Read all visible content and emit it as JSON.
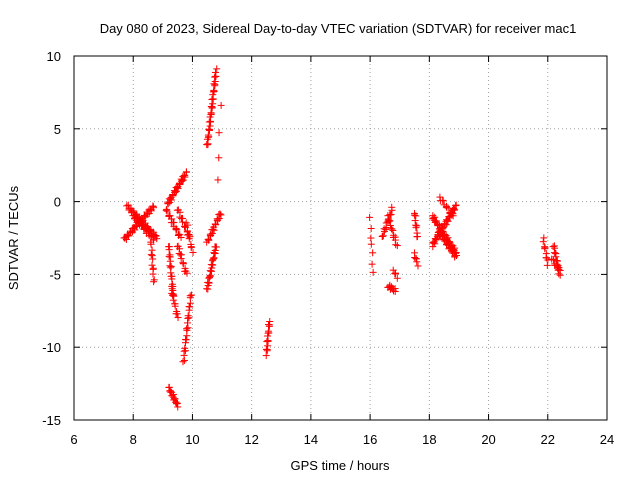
{
  "chart_data": {
    "type": "scatter",
    "title": "Day 080 of 2023, Sidereal Day-to-day VTEC variation (SDTVAR) for receiver mac1",
    "xlabel": "GPS time / hours",
    "ylabel": "SDTVAR / TECUs",
    "xlim": [
      6,
      24
    ],
    "ylim": [
      -15,
      10
    ],
    "xticks": [
      "6",
      "8",
      "10",
      "12",
      "14",
      "16",
      "18",
      "20",
      "22",
      "24"
    ],
    "yticks": [
      "-15",
      "-10",
      "-5",
      "0",
      "5",
      "10"
    ],
    "grid": true,
    "marker": "+",
    "color": "#ff0000",
    "segments": [
      {
        "x0": 7.7,
        "x1": 8.7,
        "y0": -2.6,
        "y1": -0.3,
        "n": 40
      },
      {
        "x0": 7.8,
        "x1": 8.8,
        "y0": -0.3,
        "y1": -2.5,
        "n": 40
      },
      {
        "x0": 8.0,
        "x1": 8.7,
        "y0": -1.0,
        "y1": -2.6,
        "n": 25
      },
      {
        "x0": 8.6,
        "x1": 8.7,
        "y0": -2.8,
        "y1": -5.5,
        "n": 12
      },
      {
        "x0": 9.15,
        "x1": 9.8,
        "y0": -0.2,
        "y1": 2.0,
        "n": 32
      },
      {
        "x0": 9.1,
        "x1": 9.6,
        "y0": -0.5,
        "y1": -2.5,
        "n": 18
      },
      {
        "x0": 9.2,
        "x1": 9.35,
        "y0": -3.0,
        "y1": -6.5,
        "n": 20
      },
      {
        "x0": 9.3,
        "x1": 9.5,
        "y0": -6.0,
        "y1": -8.0,
        "n": 12
      },
      {
        "x0": 9.5,
        "x1": 9.8,
        "y0": -3.0,
        "y1": -5.0,
        "n": 14
      },
      {
        "x0": 9.5,
        "x1": 9.9,
        "y0": -0.5,
        "y1": -2.5,
        "n": 14
      },
      {
        "x0": 9.8,
        "x1": 10.0,
        "y0": -1.5,
        "y1": -3.5,
        "n": 10
      },
      {
        "x0": 9.7,
        "x1": 9.95,
        "y0": -11.0,
        "y1": -6.3,
        "n": 24
      },
      {
        "x0": 9.2,
        "x1": 9.5,
        "y0": -12.8,
        "y1": -14.0,
        "n": 18
      },
      {
        "x0": 10.5,
        "x1": 10.8,
        "y0": 3.8,
        "y1": 9.0,
        "n": 38
      },
      {
        "x0": 10.5,
        "x1": 10.95,
        "y0": -2.8,
        "y1": -0.8,
        "n": 22
      },
      {
        "x0": 10.5,
        "x1": 10.8,
        "y0": -6.0,
        "y1": -3.0,
        "n": 28
      },
      {
        "x0": 10.85,
        "x1": 10.95,
        "y0": 1.4,
        "y1": 6.5,
        "n": 4
      },
      {
        "x0": 12.5,
        "x1": 12.6,
        "y0": -10.5,
        "y1": -8.2,
        "n": 16
      },
      {
        "x0": 16.0,
        "x1": 16.1,
        "y0": -1.2,
        "y1": -4.8,
        "n": 7
      },
      {
        "x0": 16.4,
        "x1": 16.75,
        "y0": -2.5,
        "y1": -0.5,
        "n": 16
      },
      {
        "x0": 16.6,
        "x1": 16.9,
        "y0": -1.0,
        "y1": -3.0,
        "n": 14
      },
      {
        "x0": 16.6,
        "x1": 16.85,
        "y0": -5.8,
        "y1": -6.1,
        "n": 12
      },
      {
        "x0": 16.8,
        "x1": 16.9,
        "y0": -4.7,
        "y1": -5.2,
        "n": 5
      },
      {
        "x0": 17.5,
        "x1": 17.6,
        "y0": -0.7,
        "y1": -2.5,
        "n": 10
      },
      {
        "x0": 17.5,
        "x1": 17.6,
        "y0": -3.6,
        "y1": -4.3,
        "n": 6
      },
      {
        "x0": 18.1,
        "x1": 18.9,
        "y0": -1.0,
        "y1": -3.5,
        "n": 40
      },
      {
        "x0": 18.1,
        "x1": 18.9,
        "y0": -3.0,
        "y1": -0.3,
        "n": 40
      },
      {
        "x0": 18.3,
        "x1": 18.9,
        "y0": -2.0,
        "y1": -3.8,
        "n": 25
      },
      {
        "x0": 18.35,
        "x1": 18.8,
        "y0": 0.3,
        "y1": -1.0,
        "n": 12
      },
      {
        "x0": 21.85,
        "x1": 22.0,
        "y0": -2.6,
        "y1": -4.3,
        "n": 10
      },
      {
        "x0": 22.2,
        "x1": 22.4,
        "y0": -3.0,
        "y1": -5.0,
        "n": 16
      },
      {
        "x0": 22.15,
        "x1": 22.4,
        "y0": -4.0,
        "y1": -4.7,
        "n": 8
      }
    ]
  }
}
